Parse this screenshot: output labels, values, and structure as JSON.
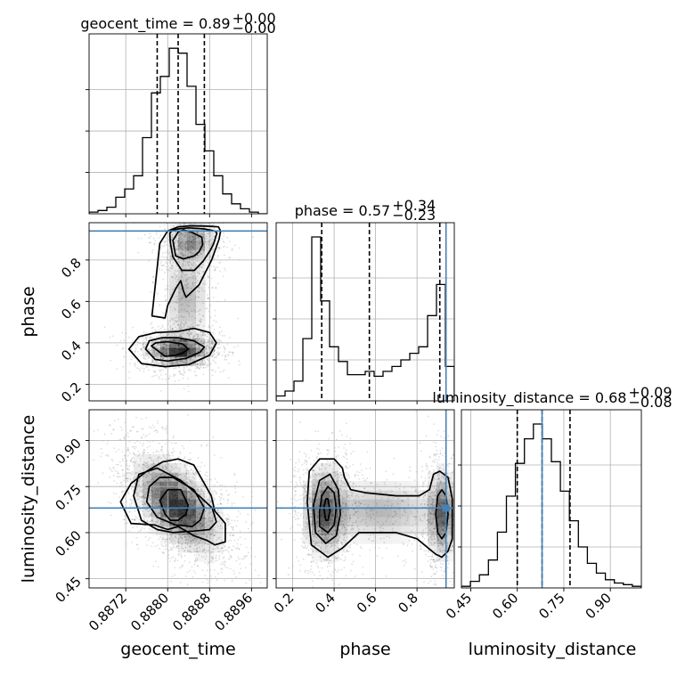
{
  "chart_data": {
    "type": "corner",
    "parameters": [
      "geocent_time",
      "phase",
      "luminosity_distance"
    ],
    "titles": [
      {
        "param": "geocent_time",
        "text": "geocent_time = 0.89",
        "sup": "+0.00",
        "sub": "−0.00"
      },
      {
        "param": "phase",
        "text": "phase = 0.57",
        "sup": "+0.34",
        "sub": "−0.23"
      },
      {
        "param": "luminosity_distance",
        "text": "luminosity_distance = 0.68",
        "sup": "+0.09",
        "sub": "−0.08"
      }
    ],
    "axes": {
      "geocent_time": {
        "range": [
          0.8865,
          0.8899
        ],
        "ticks": [
          0.8872,
          0.888,
          0.8888,
          0.8896
        ],
        "tick_labels": [
          "0.8872",
          "0.8880",
          "0.8888",
          "0.8896"
        ]
      },
      "phase": {
        "range": [
          0.12,
          0.98
        ],
        "ticks": [
          0.2,
          0.4,
          0.6,
          0.8
        ],
        "tick_labels": [
          "0.2",
          "0.4",
          "0.6",
          "0.8"
        ]
      },
      "luminosity_distance": {
        "range": [
          0.42,
          1.0
        ],
        "ticks": [
          0.45,
          0.6,
          0.75,
          0.9
        ],
        "tick_labels": [
          "0.45",
          "0.60",
          "0.75",
          "0.90"
        ]
      }
    },
    "truths": {
      "geocent_time": null,
      "phase": 0.94,
      "luminosity_distance": 0.68
    },
    "quantiles": {
      "geocent_time": [
        0.8878,
        0.8882,
        0.8887
      ],
      "phase": [
        0.34,
        0.57,
        0.91
      ],
      "luminosity_distance": [
        0.6,
        0.68,
        0.77
      ]
    },
    "histograms": {
      "geocent_time": {
        "edges": [
          0.8865,
          0.88667,
          0.88684,
          0.88701,
          0.88718,
          0.88735,
          0.88752,
          0.88769,
          0.88786,
          0.88803,
          0.8882,
          0.88837,
          0.88854,
          0.88871,
          0.88888,
          0.88905,
          0.88922,
          0.88939,
          0.88956,
          0.88973,
          0.8899
        ],
        "counts": [
          1,
          2,
          4,
          10,
          15,
          23,
          46,
          73,
          83,
          100,
          97,
          77,
          54,
          38,
          23,
          12,
          6,
          3,
          1,
          0
        ]
      },
      "phase": {
        "edges": [
          0.12,
          0.163,
          0.206,
          0.249,
          0.292,
          0.335,
          0.378,
          0.421,
          0.464,
          0.507,
          0.55,
          0.593,
          0.636,
          0.679,
          0.722,
          0.765,
          0.808,
          0.851,
          0.894,
          0.937,
          0.98
        ],
        "counts": [
          3,
          6,
          12,
          38,
          100,
          61,
          33,
          24,
          16,
          16,
          18,
          15,
          18,
          21,
          25,
          29,
          33,
          52,
          71,
          21
        ]
      },
      "luminosity_distance": {
        "edges": [
          0.42,
          0.449,
          0.478,
          0.507,
          0.536,
          0.565,
          0.594,
          0.623,
          0.652,
          0.681,
          0.71,
          0.739,
          0.768,
          0.797,
          0.826,
          0.855,
          0.884,
          0.913,
          0.942,
          0.971,
          1.0
        ],
        "counts": [
          1,
          4,
          8,
          17,
          34,
          56,
          76,
          91,
          100,
          91,
          77,
          59,
          41,
          25,
          15,
          9,
          5,
          3,
          2,
          1
        ]
      }
    },
    "contours": {
      "phase_vs_geocent_time": [
        {
          "x": [
            0.88815,
            0.8883,
            0.88851,
            0.8886,
            0.88867,
            0.88865,
            0.88845,
            0.8883,
            0.8882,
            0.8881,
            0.88815
          ],
          "y": [
            0.82,
            0.805,
            0.82,
            0.84,
            0.875,
            0.91,
            0.935,
            0.945,
            0.935,
            0.895,
            0.82
          ]
        },
        {
          "x": [
            0.88805,
            0.8881,
            0.88827,
            0.88851,
            0.88868,
            0.88881,
            0.88888,
            0.88894,
            0.8889,
            0.8887,
            0.8884,
            0.8882,
            0.8881,
            0.88804,
            0.88805
          ],
          "y": [
            0.885,
            0.815,
            0.75,
            0.75,
            0.795,
            0.845,
            0.88,
            0.93,
            0.94,
            0.95,
            0.955,
            0.95,
            0.945,
            0.93,
            0.885
          ]
        },
        {
          "x": [
            0.8877,
            0.88795,
            0.888,
            0.88815,
            0.88825,
            0.8883,
            0.88835,
            0.8886,
            0.88884,
            0.88898,
            0.88901,
            0.88897,
            0.8888,
            0.88845,
            0.8882,
            0.888,
            0.88785,
            0.8877
          ],
          "y": [
            0.53,
            0.52,
            0.58,
            0.66,
            0.7,
            0.65,
            0.62,
            0.68,
            0.8,
            0.9,
            0.94,
            0.96,
            0.963,
            0.965,
            0.96,
            0.94,
            0.88,
            0.53
          ]
        },
        {
          "x": [
            0.88777,
            0.88795,
            0.88815,
            0.88828,
            0.8884,
            0.88828,
            0.888,
            0.88777,
            0.88769,
            0.88777
          ],
          "y": [
            0.37,
            0.335,
            0.34,
            0.35,
            0.37,
            0.395,
            0.405,
            0.4,
            0.385,
            0.37
          ]
        },
        {
          "x": [
            0.88758,
            0.88776,
            0.888,
            0.88835,
            0.88862,
            0.8887,
            0.8885,
            0.8882,
            0.88789,
            0.88765,
            0.88758
          ],
          "y": [
            0.37,
            0.32,
            0.312,
            0.325,
            0.355,
            0.38,
            0.41,
            0.425,
            0.425,
            0.41,
            0.37
          ]
        },
        {
          "x": [
            0.88726,
            0.8875,
            0.88795,
            0.8884,
            0.8888,
            0.88893,
            0.8888,
            0.8885,
            0.8882,
            0.88778,
            0.88745,
            0.88726
          ],
          "y": [
            0.37,
            0.3,
            0.285,
            0.295,
            0.34,
            0.4,
            0.45,
            0.47,
            0.455,
            0.45,
            0.43,
            0.37
          ]
        }
      ],
      "luminosity_distance_vs_geocent_time": [
        {
          "x": [
            0.88805,
            0.8882,
            0.88835,
            0.88839,
            0.88825,
            0.888,
            0.88785,
            0.88795,
            0.88805
          ],
          "y": [
            0.64,
            0.64,
            0.66,
            0.69,
            0.74,
            0.74,
            0.705,
            0.66,
            0.64
          ]
        },
        {
          "x": [
            0.8878,
            0.88815,
            0.88847,
            0.88862,
            0.8887,
            0.8885,
            0.8881,
            0.88785,
            0.88765,
            0.8876,
            0.8878
          ],
          "y": [
            0.65,
            0.625,
            0.62,
            0.64,
            0.68,
            0.74,
            0.78,
            0.78,
            0.75,
            0.7,
            0.65
          ]
        },
        {
          "x": [
            0.8875,
            0.8878,
            0.8881,
            0.8885,
            0.8888,
            0.88893,
            0.88885,
            0.8886,
            0.88825,
            0.8878,
            0.88745,
            0.88735,
            0.8875
          ],
          "y": [
            0.64,
            0.61,
            0.6,
            0.605,
            0.61,
            0.635,
            0.68,
            0.72,
            0.77,
            0.81,
            0.79,
            0.72,
            0.64
          ]
        },
        {
          "x": [
            0.8873,
            0.88775,
            0.888,
            0.8882,
            0.8885,
            0.88875,
            0.8889,
            0.8891,
            0.8891,
            0.8889,
            0.88883,
            0.8887,
            0.8885,
            0.8882,
            0.8879,
            0.8876,
            0.8873,
            0.8871,
            0.8873
          ],
          "y": [
            0.63,
            0.625,
            0.61,
            0.62,
            0.59,
            0.575,
            0.56,
            0.57,
            0.63,
            0.67,
            0.72,
            0.76,
            0.82,
            0.84,
            0.83,
            0.8,
            0.76,
            0.7,
            0.63
          ]
        }
      ],
      "luminosity_distance_vs_phase": [
        {
          "x": [
            0.36,
            0.37,
            0.38,
            0.37,
            0.36,
            0.35,
            0.36
          ],
          "y": [
            0.64,
            0.64,
            0.67,
            0.71,
            0.71,
            0.68,
            0.64
          ]
        },
        {
          "x": [
            0.33,
            0.37,
            0.4,
            0.41,
            0.4,
            0.37,
            0.34,
            0.33,
            0.33
          ],
          "y": [
            0.62,
            0.6,
            0.625,
            0.68,
            0.73,
            0.75,
            0.72,
            0.67,
            0.62
          ]
        },
        {
          "x": [
            0.31,
            0.36,
            0.41,
            0.43,
            0.42,
            0.38,
            0.33,
            0.3,
            0.31
          ],
          "y": [
            0.6,
            0.565,
            0.59,
            0.66,
            0.74,
            0.79,
            0.77,
            0.69,
            0.6
          ]
        },
        {
          "x": [
            0.29,
            0.37,
            0.44,
            0.52,
            0.6,
            0.7,
            0.8,
            0.89,
            0.92,
            0.95,
            0.97,
            0.97,
            0.95,
            0.91,
            0.88,
            0.86,
            0.81,
            0.7,
            0.55,
            0.48,
            0.45,
            0.44,
            0.4,
            0.33,
            0.28,
            0.27,
            0.29
          ],
          "y": [
            0.56,
            0.52,
            0.55,
            0.6,
            0.6,
            0.6,
            0.58,
            0.53,
            0.52,
            0.54,
            0.58,
            0.71,
            0.78,
            0.8,
            0.79,
            0.74,
            0.72,
            0.72,
            0.73,
            0.74,
            0.78,
            0.81,
            0.84,
            0.84,
            0.8,
            0.7,
            0.56
          ]
        },
        {
          "x": [
            0.9,
            0.92,
            0.94,
            0.95,
            0.94,
            0.92,
            0.9,
            0.89,
            0.9
          ],
          "y": [
            0.6,
            0.58,
            0.6,
            0.66,
            0.72,
            0.74,
            0.72,
            0.66,
            0.6
          ]
        }
      ]
    }
  }
}
